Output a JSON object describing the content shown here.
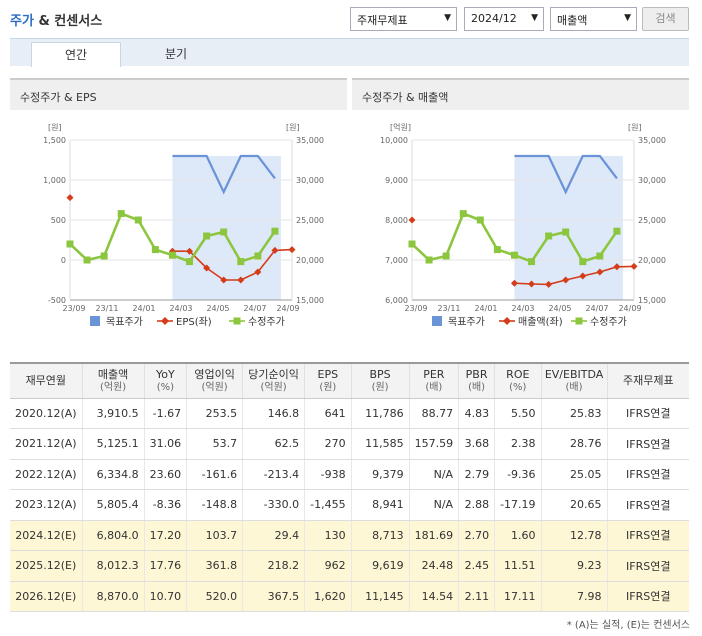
{
  "header": {
    "title_main": "주가",
    "title_rest": " & 컨센서스",
    "select_report": "주재무제표",
    "select_period": "2024/12",
    "select_metric": "매출액",
    "search_label": "검색"
  },
  "tabs": [
    {
      "label": "연간"
    },
    {
      "label": "분기"
    }
  ],
  "charts": {
    "left": {
      "title": "수정주가 & EPS",
      "y_left_unit": "[원]",
      "y_right_unit": "[원]",
      "legend": [
        "목표주가",
        "EPS(좌)",
        "수정주가"
      ]
    },
    "right": {
      "title": "수정주가 & 매출액",
      "y_left_unit": "[억원]",
      "y_right_unit": "[원]",
      "legend": [
        "목표주가",
        "매출액(좌)",
        "수정주가"
      ]
    }
  },
  "colors": {
    "target": "#6a93d8",
    "eps": "#d43d1a",
    "price": "#8cc63f",
    "shade": "#dde8f8"
  },
  "chart_data": [
    {
      "type": "line",
      "title": "수정주가 & EPS",
      "x_ticks": [
        "23/09",
        "23/11",
        "24/01",
        "24/03",
        "24/05",
        "24/07",
        "24/09"
      ],
      "y_left": {
        "label": "[원]",
        "range": [
          -500,
          1500
        ],
        "ticks": [
          "1,500",
          "1,000",
          "500",
          "0",
          "-500"
        ]
      },
      "y_right": {
        "label": "[원]",
        "range": [
          15000,
          35000
        ],
        "ticks": [
          "35,000",
          "30,000",
          "25,000",
          "20,000",
          "15,000"
        ]
      },
      "series": [
        {
          "name": "목표주가",
          "axis": "right",
          "x": [
            6,
            7,
            8,
            9,
            10,
            11,
            12
          ],
          "values": [
            33000,
            33000,
            33000,
            28500,
            33000,
            33000,
            30200
          ]
        },
        {
          "name": "EPS(좌)",
          "axis": "left",
          "x": [
            0,
            6,
            7,
            8,
            9,
            10,
            11,
            12,
            13
          ],
          "values": [
            780,
            110,
            110,
            -100,
            -250,
            -250,
            -150,
            120,
            130
          ]
        },
        {
          "name": "수정주가",
          "axis": "right",
          "x": [
            0,
            1,
            2,
            3,
            4,
            5,
            6,
            7,
            8,
            9,
            10,
            11,
            12
          ],
          "values": [
            22000,
            20000,
            20500,
            25800,
            25000,
            21300,
            20600,
            19800,
            23000,
            23500,
            19800,
            20500,
            23600
          ]
        }
      ]
    },
    {
      "type": "line",
      "title": "수정주가 & 매출액",
      "x_ticks": [
        "23/09",
        "23/11",
        "24/01",
        "24/03",
        "24/05",
        "24/07",
        "24/09"
      ],
      "y_left": {
        "label": "[억원]",
        "range": [
          6000,
          10000
        ],
        "ticks": [
          "10,000",
          "9,000",
          "8,000",
          "7,000",
          "6,000"
        ]
      },
      "y_right": {
        "label": "[원]",
        "range": [
          15000,
          35000
        ],
        "ticks": [
          "35,000",
          "30,000",
          "25,000",
          "20,000",
          "15,000"
        ]
      },
      "series": [
        {
          "name": "목표주가",
          "axis": "right",
          "x": [
            6,
            7,
            8,
            9,
            10,
            11,
            12
          ],
          "values": [
            33000,
            33000,
            33000,
            28500,
            33000,
            33000,
            30200
          ]
        },
        {
          "name": "매출액(좌)",
          "axis": "left",
          "x": [
            0,
            6,
            7,
            8,
            9,
            10,
            11,
            12,
            13
          ],
          "values": [
            8000,
            6420,
            6400,
            6390,
            6500,
            6600,
            6700,
            6830,
            6840
          ]
        },
        {
          "name": "수정주가",
          "axis": "right",
          "x": [
            0,
            1,
            2,
            3,
            4,
            5,
            6,
            7,
            8,
            9,
            10,
            11,
            12
          ],
          "values": [
            22000,
            20000,
            20500,
            25800,
            25000,
            21300,
            20600,
            19800,
            23000,
            23500,
            19800,
            20500,
            23600
          ]
        }
      ]
    }
  ],
  "table": {
    "headers": [
      {
        "main": "재무연월",
        "sub": ""
      },
      {
        "main": "매출액",
        "sub": "(억원)"
      },
      {
        "main": "YoY",
        "sub": "(%)"
      },
      {
        "main": "영업이익",
        "sub": "(억원)"
      },
      {
        "main": "당기순이익",
        "sub": "(억원)"
      },
      {
        "main": "EPS",
        "sub": "(원)"
      },
      {
        "main": "BPS",
        "sub": "(원)"
      },
      {
        "main": "PER",
        "sub": "(배)"
      },
      {
        "main": "PBR",
        "sub": "(배)"
      },
      {
        "main": "ROE",
        "sub": "(%)"
      },
      {
        "main": "EV/EBITDA",
        "sub": "(배)"
      },
      {
        "main": "주재무제표",
        "sub": ""
      }
    ],
    "rows": [
      {
        "estimate": false,
        "cells": [
          "2020.12(A)",
          "3,910.5",
          "-1.67",
          "253.5",
          "146.8",
          "641",
          "11,786",
          "88.77",
          "4.83",
          "5.50",
          "25.83",
          "IFRS연결"
        ]
      },
      {
        "estimate": false,
        "cells": [
          "2021.12(A)",
          "5,125.1",
          "31.06",
          "53.7",
          "62.5",
          "270",
          "11,585",
          "157.59",
          "3.68",
          "2.38",
          "28.76",
          "IFRS연결"
        ]
      },
      {
        "estimate": false,
        "cells": [
          "2022.12(A)",
          "6,334.8",
          "23.60",
          "-161.6",
          "-213.4",
          "-938",
          "9,379",
          "N/A",
          "2.79",
          "-9.36",
          "25.05",
          "IFRS연결"
        ]
      },
      {
        "estimate": false,
        "cells": [
          "2023.12(A)",
          "5,805.4",
          "-8.36",
          "-148.8",
          "-330.0",
          "-1,455",
          "8,941",
          "N/A",
          "2.88",
          "-17.19",
          "20.65",
          "IFRS연결"
        ]
      },
      {
        "estimate": true,
        "cells": [
          "2024.12(E)",
          "6,804.0",
          "17.20",
          "103.7",
          "29.4",
          "130",
          "8,713",
          "181.69",
          "2.70",
          "1.60",
          "12.78",
          "IFRS연결"
        ]
      },
      {
        "estimate": true,
        "cells": [
          "2025.12(E)",
          "8,012.3",
          "17.76",
          "361.8",
          "218.2",
          "962",
          "9,619",
          "24.48",
          "2.45",
          "11.51",
          "9.23",
          "IFRS연결"
        ]
      },
      {
        "estimate": true,
        "cells": [
          "2026.12(E)",
          "8,870.0",
          "10.70",
          "520.0",
          "367.5",
          "1,620",
          "11,145",
          "14.54",
          "2.11",
          "17.11",
          "7.98",
          "IFRS연결"
        ]
      }
    ]
  },
  "footnote": "* (A)는 실적, (E)는 컨센서스"
}
